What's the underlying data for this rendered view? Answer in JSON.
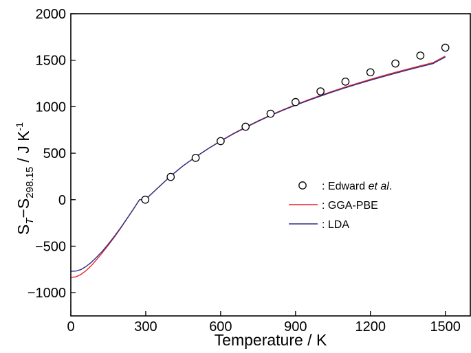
{
  "chart_data": {
    "type": "line",
    "title": "",
    "xlabel": "Temperature / K",
    "ylabel": {
      "s1": "S",
      "sub1": "T",
      "dash": "−",
      "s2": "S",
      "sub2": "298.15",
      "unit": " / J K",
      "sup": "-1"
    },
    "xlim": [
      0,
      1600
    ],
    "ylim": [
      -1250,
      2000
    ],
    "xticks": [
      0,
      300,
      600,
      900,
      1200,
      1500
    ],
    "yticks": [
      -1000,
      -500,
      0,
      500,
      1000,
      1500,
      2000
    ],
    "grid": false,
    "legend_position": "center-right",
    "series": [
      {
        "name": ": Edward et al.",
        "name_parts": [
          ": Edward ",
          "et al",
          "."
        ],
        "kind": "scatter",
        "marker": "open-circle",
        "color": "#000000",
        "x": [
          298.15,
          400,
          500,
          600,
          700,
          800,
          900,
          1000,
          1100,
          1200,
          1300,
          1400,
          1500
        ],
        "y": [
          0,
          245,
          450,
          630,
          785,
          925,
          1050,
          1165,
          1270,
          1370,
          1465,
          1550,
          1635
        ]
      },
      {
        "name": ": GGA-PBE",
        "kind": "line",
        "color": "#e8232a",
        "x": [
          0,
          20,
          40,
          60,
          80,
          100,
          125,
          150,
          175,
          200,
          225,
          250,
          275,
          298.15,
          350,
          400,
          450,
          500,
          550,
          600,
          650,
          700,
          750,
          800,
          850,
          900,
          950,
          1000,
          1050,
          1100,
          1150,
          1200,
          1250,
          1300,
          1350,
          1400,
          1450,
          1500
        ],
        "y": [
          -835,
          -830,
          -805,
          -765,
          -715,
          -655,
          -575,
          -490,
          -400,
          -305,
          -205,
          -105,
          0,
          0,
          130,
          255,
          365,
          460,
          550,
          632,
          710,
          780,
          848,
          910,
          968,
          1022,
          1073,
          1122,
          1168,
          1212,
          1254,
          1294,
          1333,
          1370,
          1405,
          1440,
          1473,
          1545
        ]
      },
      {
        "name": ": LDA",
        "kind": "line",
        "color": "#2b2f8a",
        "x": [
          0,
          20,
          40,
          60,
          80,
          100,
          125,
          150,
          175,
          200,
          225,
          250,
          275,
          298.15,
          350,
          400,
          450,
          500,
          550,
          600,
          650,
          700,
          750,
          800,
          850,
          900,
          950,
          1000,
          1050,
          1100,
          1150,
          1200,
          1250,
          1300,
          1350,
          1400,
          1450,
          1500
        ],
        "y": [
          -770,
          -768,
          -752,
          -720,
          -678,
          -628,
          -558,
          -478,
          -392,
          -300,
          -203,
          -103,
          0,
          0,
          130,
          255,
          365,
          460,
          548,
          630,
          706,
          776,
          843,
          905,
          962,
          1016,
          1066,
          1114,
          1160,
          1204,
          1245,
          1285,
          1323,
          1360,
          1396,
          1430,
          1463,
          1535
        ]
      }
    ]
  }
}
